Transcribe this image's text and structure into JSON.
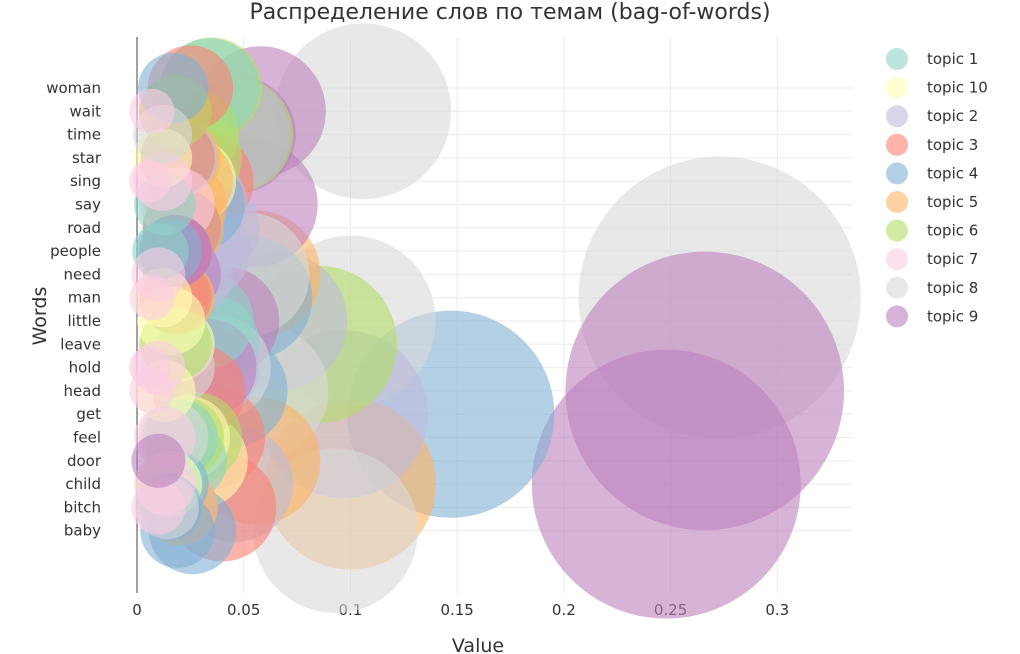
{
  "chart_data": {
    "type": "scatter",
    "title": "Распределение слов по темам (bag-of-words)",
    "xlabel": "Value",
    "ylabel": "Words",
    "xlim": [
      0,
      0.335
    ],
    "x_ticks": [
      0,
      0.05,
      0.1,
      0.15,
      0.2,
      0.25,
      0.3
    ],
    "x_tick_labels": [
      "0",
      "0.05",
      "0.1",
      "0.15",
      "0.2",
      "0.25",
      "0.3"
    ],
    "categories": [
      "woman",
      "wait",
      "time",
      "star",
      "sing",
      "say",
      "road",
      "people",
      "need",
      "man",
      "little",
      "leave",
      "hold",
      "head",
      "get",
      "feel",
      "door",
      "child",
      "bitch",
      "baby"
    ],
    "grid": true,
    "legend_position": "right",
    "series": [
      {
        "name": "topic 1",
        "color": "#8dd3c7",
        "points": [
          [
            "woman",
            0.034
          ],
          [
            "little",
            0.032
          ],
          [
            "leave",
            0.034
          ],
          [
            "say",
            0.013
          ],
          [
            "people",
            0.011
          ],
          [
            "feel",
            0.02
          ],
          [
            "door",
            0.023
          ],
          [
            "child",
            0.016
          ],
          [
            "star",
            0.019
          ],
          [
            "road",
            0.021
          ]
        ]
      },
      {
        "name": "topic 10",
        "color": "#ffffb3",
        "points": [
          [
            "star",
            0.012
          ],
          [
            "little",
            0.016
          ],
          [
            "head",
            0.013
          ],
          [
            "man",
            0.012
          ],
          [
            "child",
            0.015
          ],
          [
            "door",
            0.03
          ],
          [
            "feel",
            0.024
          ],
          [
            "leave",
            0.019
          ],
          [
            "sing",
            0.026
          ]
        ]
      },
      {
        "name": "topic 2",
        "color": "#bebada",
        "points": [
          [
            "people",
            0.031
          ],
          [
            "little",
            0.066
          ],
          [
            "get",
            0.097
          ],
          [
            "child",
            0.046
          ],
          [
            "road",
            0.034
          ],
          [
            "need",
            0.025
          ],
          [
            "hold",
            0.034
          ],
          [
            "time",
            0.045
          ],
          [
            "star",
            0.02
          ],
          [
            "say",
            0.03
          ],
          [
            "bitch",
            0.02
          ]
        ]
      },
      {
        "name": "topic 3",
        "color": "#fb8072",
        "points": [
          [
            "woman",
            0.025
          ],
          [
            "wait",
            0.018
          ],
          [
            "star",
            0.019
          ],
          [
            "sing",
            0.032
          ],
          [
            "road",
            0.021
          ],
          [
            "man",
            0.018
          ],
          [
            "head",
            0.029
          ],
          [
            "feel",
            0.036
          ],
          [
            "bitch",
            0.04
          ],
          [
            "people",
            0.018
          ]
        ]
      },
      {
        "name": "topic 4",
        "color": "#80b1d3",
        "points": [
          [
            "woman",
            0.017
          ],
          [
            "say",
            0.029
          ],
          [
            "man",
            0.053
          ],
          [
            "head",
            0.044
          ],
          [
            "get",
            0.147
          ],
          [
            "baby",
            0.026
          ],
          [
            "child",
            0.017
          ],
          [
            "people",
            0.015
          ],
          [
            "baby",
            0.019
          ],
          [
            "bitch",
            0.015
          ]
        ]
      },
      {
        "name": "topic 5",
        "color": "#fdb462",
        "points": [
          [
            "sing",
            0.025
          ],
          [
            "say",
            0.023
          ],
          [
            "need",
            0.056
          ],
          [
            "man",
            0.019
          ],
          [
            "door",
            0.056
          ],
          [
            "child",
            0.1
          ],
          [
            "bitch",
            0.02
          ],
          [
            "road",
            0.022
          ],
          [
            "star",
            0.021
          ]
        ]
      },
      {
        "name": "topic 6",
        "color": "#b3de69",
        "points": [
          [
            "woman",
            0.035
          ],
          [
            "wait",
            0.018
          ],
          [
            "time",
            0.027
          ],
          [
            "star",
            0.028
          ],
          [
            "leave",
            0.085
          ],
          [
            "feel",
            0.022
          ],
          [
            "leave",
            0.018
          ],
          [
            "time",
            0.046
          ],
          [
            "feel",
            0.028
          ]
        ]
      },
      {
        "name": "topic 7",
        "color": "#fccde5",
        "points": [
          [
            "wait",
            0.007
          ],
          [
            "sing",
            0.006
          ],
          [
            "sing",
            0.012
          ],
          [
            "need",
            0.01
          ],
          [
            "man",
            0.007
          ],
          [
            "hold",
            0.006
          ],
          [
            "hold",
            0.01
          ],
          [
            "head",
            0.007
          ],
          [
            "feel",
            0.013
          ],
          [
            "bitch",
            0.01
          ],
          [
            "say",
            0.019
          ],
          [
            "child",
            0.013
          ]
        ]
      },
      {
        "name": "topic 8",
        "color": "#d9d9d9",
        "points": [
          [
            "wait",
            0.106
          ],
          [
            "time",
            0.012
          ],
          [
            "man",
            0.273
          ],
          [
            "little",
            0.1
          ],
          [
            "hold",
            0.038
          ],
          [
            "head",
            0.059
          ],
          [
            "baby",
            0.093
          ],
          [
            "need",
            0.052
          ],
          [
            "hold",
            0.019
          ],
          [
            "feel",
            0.017
          ],
          [
            "bitch",
            0.014
          ]
        ]
      },
      {
        "name": "topic 9",
        "color": "#bc80bd",
        "points": [
          [
            "wait",
            0.058
          ],
          [
            "time",
            0.047
          ],
          [
            "say",
            0.055
          ],
          [
            "people",
            0.018
          ],
          [
            "need",
            0.021
          ],
          [
            "little",
            0.041
          ],
          [
            "hold",
            0.033
          ],
          [
            "head",
            0.266
          ],
          [
            "child",
            0.248
          ],
          [
            "door",
            0.01
          ],
          [
            "people",
            0.018
          ]
        ]
      }
    ]
  }
}
